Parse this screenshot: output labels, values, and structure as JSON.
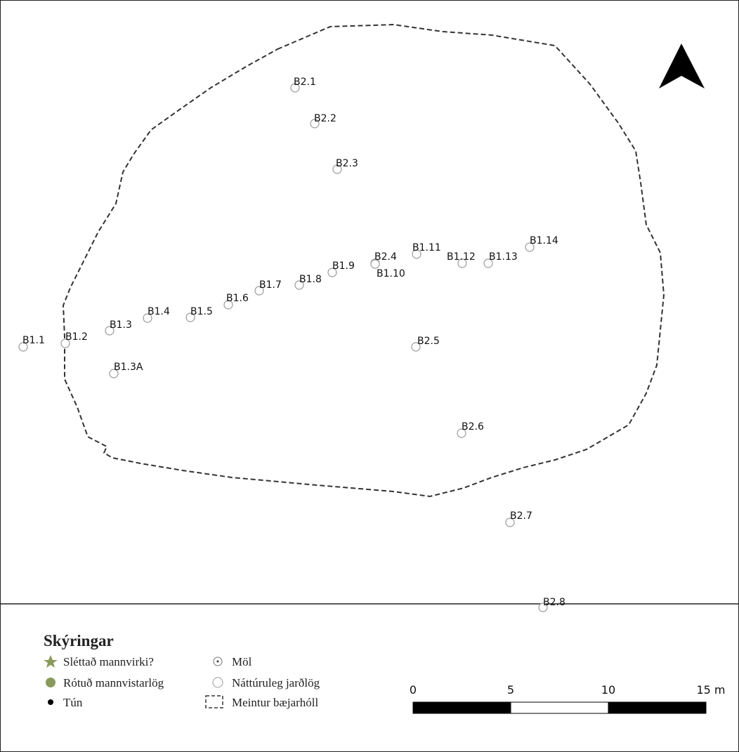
{
  "map": {
    "points": [
      {
        "label": "B2.1"
      },
      {
        "label": "B2.2"
      },
      {
        "label": "B2.3"
      },
      {
        "label": "B1.1"
      },
      {
        "label": "B1.2"
      },
      {
        "label": "B1.3"
      },
      {
        "label": "B1.3A"
      },
      {
        "label": "B1.4"
      },
      {
        "label": "B1.5"
      },
      {
        "label": "B1.6"
      },
      {
        "label": "B1.7"
      },
      {
        "label": "B1.8"
      },
      {
        "label": "B1.9"
      },
      {
        "label": "B2.4"
      },
      {
        "label": "B1.10"
      },
      {
        "label": "B1.11"
      },
      {
        "label": "B1.12"
      },
      {
        "label": "B1.13"
      },
      {
        "label": "B1.14"
      },
      {
        "label": "B2.5"
      },
      {
        "label": "B2.6"
      },
      {
        "label": "B2.7"
      },
      {
        "label": "B2.8"
      }
    ]
  },
  "legend": {
    "title": "Skýringar",
    "items": [
      "Sléttað mannvirki?",
      "Rótuð mannvistarlög",
      "Tún",
      "Möl",
      "Náttúruleg jarðlög",
      "Meintur bæjarhóll"
    ]
  },
  "scale": {
    "labels": [
      "0",
      "5",
      "10",
      "15 m"
    ]
  }
}
